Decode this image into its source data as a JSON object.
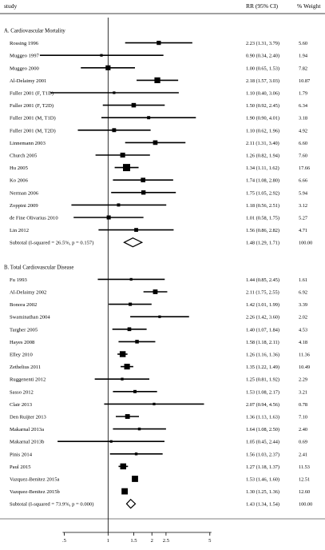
{
  "header": {
    "study_label": "study",
    "rr_label": "RR (95% CI)",
    "pct_label": "%",
    "weight_label": "Weight"
  },
  "chart_data": {
    "type": "forest",
    "x_scale": "log",
    "xlim": [
      0.3,
      8
    ],
    "reference_line": 1,
    "x_ticks": [
      0.5,
      1,
      1.5,
      2,
      2.5,
      5
    ],
    "x_tick_labels": [
      ".5",
      "1",
      "1.5",
      "2",
      "2.5",
      "5"
    ],
    "groups": [
      {
        "title": "A. Cardiovascular Mortality",
        "studies": [
          {
            "label": "Rossing 1996",
            "rr": 2.23,
            "lo": 1.31,
            "hi": 3.79,
            "ci_text": "2.23 (1.31, 3.79)",
            "weight": "5.60"
          },
          {
            "label": "Muggeo 1997",
            "rr": 0.9,
            "lo": 0.34,
            "hi": 2.4,
            "ci_text": "0.90 (0.34, 2.40)",
            "weight": "1.94"
          },
          {
            "label": "Muggeo 2000",
            "rr": 1.0,
            "lo": 0.65,
            "hi": 1.53,
            "ci_text": "1.00 (0.65, 1.53)",
            "weight": "7.82"
          },
          {
            "label": "Al-Delaimy 2001",
            "rr": 2.18,
            "lo": 1.57,
            "hi": 3.03,
            "ci_text": "2.18 (1.57, 3.03)",
            "weight": "10.87"
          },
          {
            "label": "Fuller 2001 (F, T1D)",
            "rr": 1.1,
            "lo": 0.4,
            "hi": 3.06,
            "ci_text": "1.10 (0.40, 3.06)",
            "weight": "1.79"
          },
          {
            "label": "Fuller 2001 (F, T2D)",
            "rr": 1.5,
            "lo": 0.92,
            "hi": 2.45,
            "ci_text": "1.50 (0.92, 2.45)",
            "weight": "6.34"
          },
          {
            "label": "Fuller 2001 (M, T1D)",
            "rr": 1.9,
            "lo": 0.9,
            "hi": 4.01,
            "ci_text": "1.90 (0.90, 4.01)",
            "weight": "3.18"
          },
          {
            "label": "Fuller 2001 (M, T2D)",
            "rr": 1.1,
            "lo": 0.62,
            "hi": 1.96,
            "ci_text": "1.10 (0.62, 1.96)",
            "weight": "4.92"
          },
          {
            "label": "Linnemann 2003",
            "rr": 2.11,
            "lo": 1.31,
            "hi": 3.4,
            "ci_text": "2.11 (1.31, 3.40)",
            "weight": "6.60"
          },
          {
            "label": "Church 2005",
            "rr": 1.26,
            "lo": 0.82,
            "hi": 1.94,
            "ci_text": "1.26 (0.82, 1.94)",
            "weight": "7.60"
          },
          {
            "label": "Hu 2005",
            "rr": 1.34,
            "lo": 1.11,
            "hi": 1.62,
            "ci_text": "1.34 (1.11, 1.62)",
            "weight": "17.66"
          },
          {
            "label": "Ko 2006",
            "rr": 1.74,
            "lo": 1.08,
            "hi": 2.8,
            "ci_text": "1.74 (1.08, 2.80)",
            "weight": "6.66"
          },
          {
            "label": "Nerman 2006",
            "rr": 1.75,
            "lo": 1.05,
            "hi": 2.92,
            "ci_text": "1.75 (1.05, 2.92)",
            "weight": "5.94"
          },
          {
            "label": "Zoppini 2009",
            "rr": 1.18,
            "lo": 0.56,
            "hi": 2.51,
            "ci_text": "1.18 (0.56, 2.51)",
            "weight": "3.12"
          },
          {
            "label": "de Fine Olivarius 2010",
            "rr": 1.01,
            "lo": 0.58,
            "hi": 1.75,
            "ci_text": "1.01 (0.58, 1.75)",
            "weight": "5.27"
          },
          {
            "label": "Lin 2012",
            "rr": 1.56,
            "lo": 0.86,
            "hi": 2.82,
            "ci_text": "1.56 (0.86, 2.82)",
            "weight": "4.71"
          }
        ],
        "subtotal": {
          "label": "Subtotal  (I-squared = 26.5%, p = 0.157)",
          "rr": 1.48,
          "lo": 1.29,
          "hi": 1.71,
          "ci_text": "1.48 (1.29, 1.71)",
          "weight": "100.00"
        }
      },
      {
        "title": "B. Total Cardiovascular Disease",
        "studies": [
          {
            "label": "Fu 1993",
            "rr": 1.44,
            "lo": 0.85,
            "hi": 2.45,
            "ci_text": "1.44 (0.85, 2.45)",
            "weight": "1.61"
          },
          {
            "label": "Al-Delaimy 2002",
            "rr": 2.11,
            "lo": 1.75,
            "hi": 2.55,
            "ci_text": "2.11 (1.75, 2.55)",
            "weight": "6.92"
          },
          {
            "label": "Bonora 2002",
            "rr": 1.42,
            "lo": 1.01,
            "hi": 1.99,
            "ci_text": "1.42 (1.01, 1.99)",
            "weight": "3.39"
          },
          {
            "label": "Swaminathan 2004",
            "rr": 2.26,
            "lo": 1.42,
            "hi": 3.6,
            "ci_text": "2.26 (1.42, 3.60)",
            "weight": "2.02"
          },
          {
            "label": "Targher 2005",
            "rr": 1.4,
            "lo": 1.07,
            "hi": 1.84,
            "ci_text": "1.40 (1.07, 1.84)",
            "weight": "4.53"
          },
          {
            "label": "Hayes 2008",
            "rr": 1.58,
            "lo": 1.18,
            "hi": 2.11,
            "ci_text": "1.58 (1.18, 2.11)",
            "weight": "4.18"
          },
          {
            "label": "Elley 2010",
            "rr": 1.26,
            "lo": 1.16,
            "hi": 1.36,
            "ci_text": "1.26 (1.16, 1.36)",
            "weight": "11.36"
          },
          {
            "label": "Zethelius 2011",
            "rr": 1.35,
            "lo": 1.22,
            "hi": 1.49,
            "ci_text": "1.35 (1.22, 1.49)",
            "weight": "10.49"
          },
          {
            "label": "Ruggenenti 2012",
            "rr": 1.25,
            "lo": 0.81,
            "hi": 1.92,
            "ci_text": "1.25 (0.81, 1.92)",
            "weight": "2.29"
          },
          {
            "label": "Sasso 2012",
            "rr": 1.53,
            "lo": 1.08,
            "hi": 2.17,
            "ci_text": "1.53 (1.08, 2.17)",
            "weight": "3.21"
          },
          {
            "label": "Clair 2013",
            "rr": 2.07,
            "lo": 0.94,
            "hi": 4.56,
            "ci_text": "2.07 (0.94, 4.56)",
            "weight": "0.78"
          },
          {
            "label": "Den Ruijter 2013",
            "rr": 1.36,
            "lo": 1.13,
            "hi": 1.63,
            "ci_text": "1.36 (1.13, 1.63)",
            "weight": "7.10"
          },
          {
            "label": "Makarnal 2013a",
            "rr": 1.64,
            "lo": 1.08,
            "hi": 2.5,
            "ci_text": "1.64 (1.08, 2.50)",
            "weight": "2.40"
          },
          {
            "label": "Makarnal 2013b",
            "rr": 1.05,
            "lo": 0.45,
            "hi": 2.44,
            "ci_text": "1.05 (0.45, 2.44)",
            "weight": "0.69"
          },
          {
            "label": "Pinis 2014",
            "rr": 1.56,
            "lo": 1.03,
            "hi": 2.37,
            "ci_text": "1.56 (1.03, 2.37)",
            "weight": "2.41"
          },
          {
            "label": "Paul 2015",
            "rr": 1.27,
            "lo": 1.18,
            "hi": 1.37,
            "ci_text": "1.27 (1.18, 1.37)",
            "weight": "11.53"
          },
          {
            "label": "Vazquez-Benitez 2015a",
            "rr": 1.53,
            "lo": 1.46,
            "hi": 1.6,
            "ci_text": "1.53 (1.46, 1.60)",
            "weight": "12.51"
          },
          {
            "label": "Vazquez-Benitez 2015b",
            "rr": 1.3,
            "lo": 1.25,
            "hi": 1.36,
            "ci_text": "1.30 (1.25, 1.36)",
            "weight": "12.60"
          }
        ],
        "subtotal": {
          "label": "Subtotal  (I-squared = 73.9%, p = 0.000)",
          "rr": 1.43,
          "lo": 1.34,
          "hi": 1.54,
          "ci_text": "1.43 (1.34, 1.54)",
          "weight": "100.00"
        }
      }
    ]
  }
}
